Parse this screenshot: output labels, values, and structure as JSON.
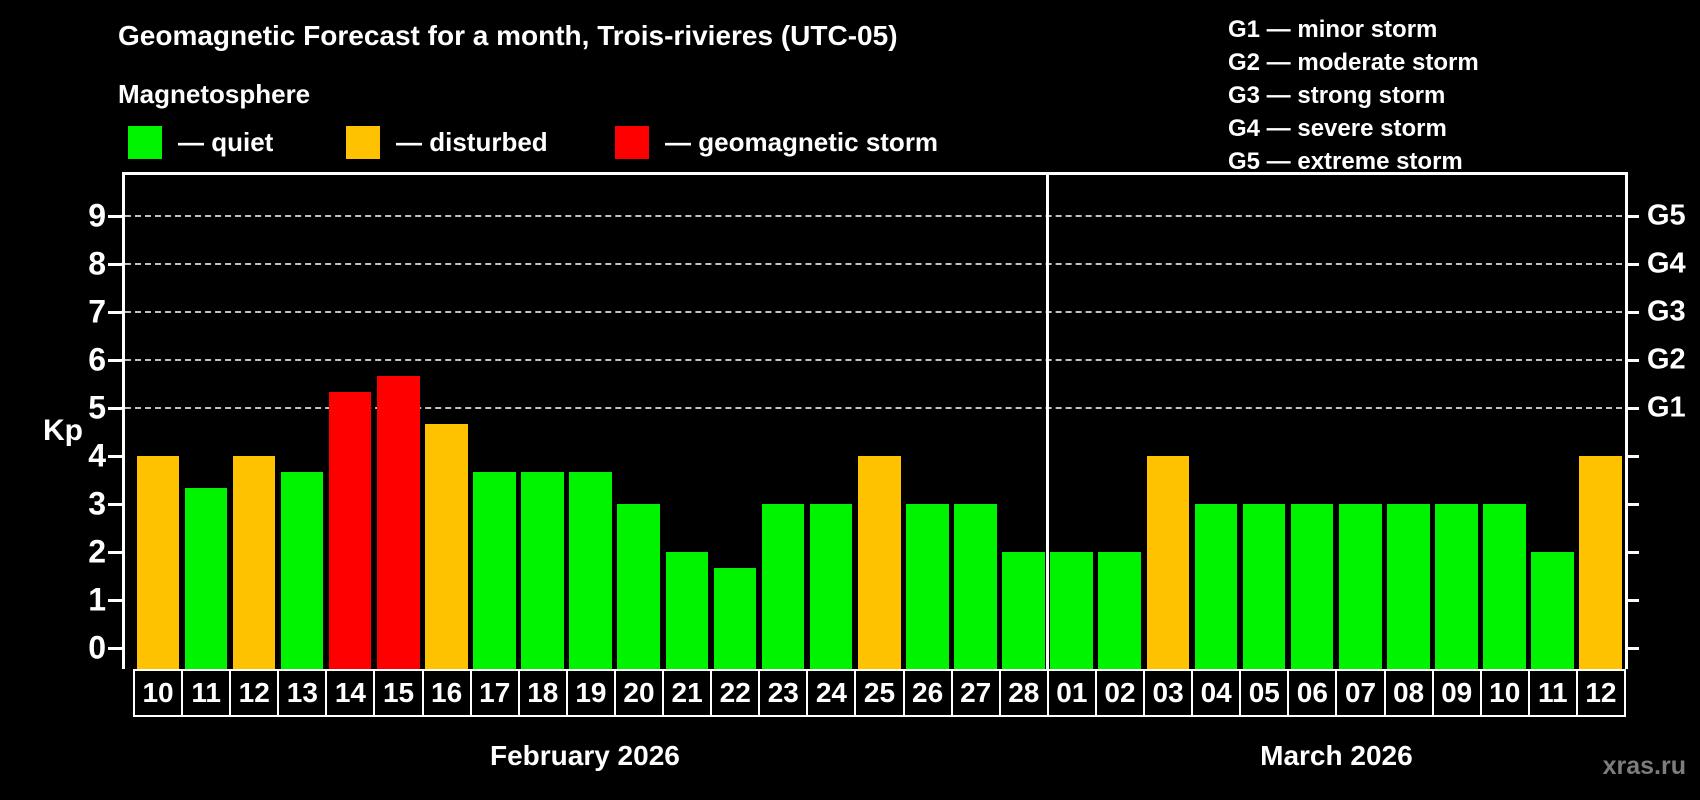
{
  "header": {
    "title": "Geomagnetic Forecast for a month, Trois-rivieres (UTC-05)",
    "subtitle": "Magnetosphere"
  },
  "legend": {
    "items": [
      {
        "name": "quiet",
        "label": "— quiet",
        "color": "#00f400"
      },
      {
        "name": "disturbed",
        "label": "— disturbed",
        "color": "#ffc200"
      },
      {
        "name": "storm",
        "label": "— geomagnetic storm",
        "color": "#ff0000"
      }
    ]
  },
  "storm_scale_legend": {
    "items": [
      "G1 — minor storm",
      "G2 — moderate storm",
      "G3 — strong storm",
      "G4 — severe storm",
      "G5 — extreme storm"
    ]
  },
  "watermark": "xras.ru",
  "chart_data": {
    "type": "bar",
    "ylabel": "Kp",
    "ylim": [
      0,
      9
    ],
    "yticks": [
      0,
      1,
      2,
      3,
      4,
      5,
      6,
      7,
      8,
      9
    ],
    "grid": "horizontal dashed at Kp 5-9",
    "gridlines_at": [
      5,
      6,
      7,
      8,
      9
    ],
    "right_axis_labels": [
      {
        "label": "G1",
        "kp": 5
      },
      {
        "label": "G2",
        "kp": 6
      },
      {
        "label": "G3",
        "kp": 7
      },
      {
        "label": "G4",
        "kp": 8
      },
      {
        "label": "G5",
        "kp": 9
      }
    ],
    "legend_position": "top",
    "status_colors": {
      "quiet": "#00f400",
      "disturbed": "#ffc200",
      "storm": "#ff0000"
    },
    "months": [
      {
        "label": "February 2026",
        "days": [
          {
            "date": "10",
            "kp": 4.0,
            "status": "disturbed"
          },
          {
            "date": "11",
            "kp": 3.33,
            "status": "quiet"
          },
          {
            "date": "12",
            "kp": 4.0,
            "status": "disturbed"
          },
          {
            "date": "13",
            "kp": 3.67,
            "status": "quiet"
          },
          {
            "date": "14",
            "kp": 5.33,
            "status": "storm"
          },
          {
            "date": "15",
            "kp": 5.67,
            "status": "storm"
          },
          {
            "date": "16",
            "kp": 4.67,
            "status": "disturbed"
          },
          {
            "date": "17",
            "kp": 3.67,
            "status": "quiet"
          },
          {
            "date": "18",
            "kp": 3.67,
            "status": "quiet"
          },
          {
            "date": "19",
            "kp": 3.67,
            "status": "quiet"
          },
          {
            "date": "20",
            "kp": 3.0,
            "status": "quiet"
          },
          {
            "date": "21",
            "kp": 2.0,
            "status": "quiet"
          },
          {
            "date": "22",
            "kp": 1.67,
            "status": "quiet"
          },
          {
            "date": "23",
            "kp": 3.0,
            "status": "quiet"
          },
          {
            "date": "24",
            "kp": 3.0,
            "status": "quiet"
          },
          {
            "date": "25",
            "kp": 4.0,
            "status": "disturbed"
          },
          {
            "date": "26",
            "kp": 3.0,
            "status": "quiet"
          },
          {
            "date": "27",
            "kp": 3.0,
            "status": "quiet"
          },
          {
            "date": "28",
            "kp": 2.0,
            "status": "quiet"
          }
        ]
      },
      {
        "label": "March 2026",
        "days": [
          {
            "date": "01",
            "kp": 2.0,
            "status": "quiet"
          },
          {
            "date": "02",
            "kp": 2.0,
            "status": "quiet"
          },
          {
            "date": "03",
            "kp": 4.0,
            "status": "disturbed"
          },
          {
            "date": "04",
            "kp": 3.0,
            "status": "quiet"
          },
          {
            "date": "05",
            "kp": 3.0,
            "status": "quiet"
          },
          {
            "date": "06",
            "kp": 3.0,
            "status": "quiet"
          },
          {
            "date": "07",
            "kp": 3.0,
            "status": "quiet"
          },
          {
            "date": "08",
            "kp": 3.0,
            "status": "quiet"
          },
          {
            "date": "09",
            "kp": 3.0,
            "status": "quiet"
          },
          {
            "date": "10",
            "kp": 3.0,
            "status": "quiet"
          },
          {
            "date": "11",
            "kp": 2.0,
            "status": "quiet"
          },
          {
            "date": "12",
            "kp": 4.0,
            "status": "disturbed"
          }
        ]
      }
    ]
  }
}
